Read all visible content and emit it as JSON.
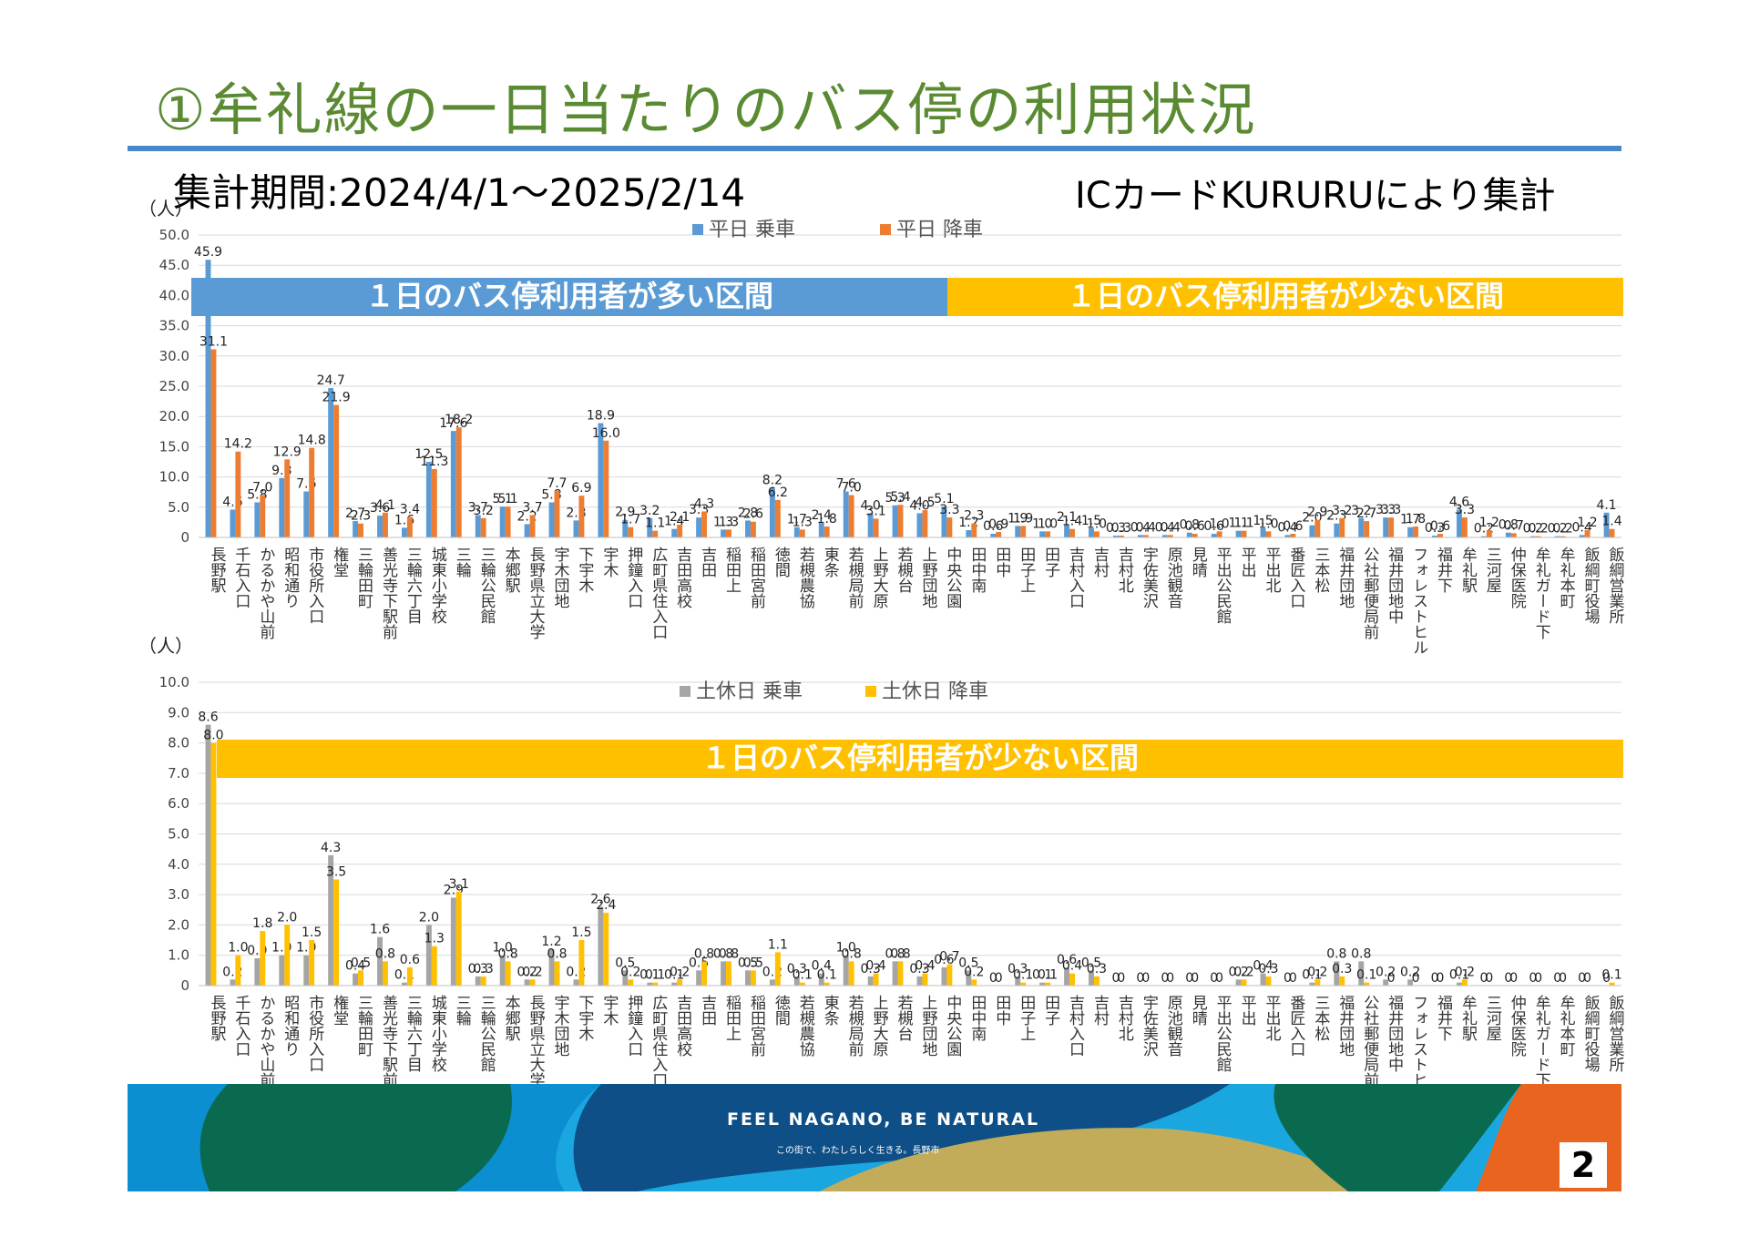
{
  "slide": {
    "title": "①牟礼線の一日当たりのバス停の利用状況",
    "period": "集計期間:2024/4/1～2025/2/14",
    "source": "ICカードKURURUにより集計",
    "brand": "FEEL NAGANO, BE NATURAL",
    "tagline": "この街で、わたしらしく生きる。長野市",
    "page_number": "2"
  },
  "chart_data": [
    {
      "type": "bar",
      "unit_label": "（人）",
      "ylim": [
        0,
        50
      ],
      "yticks": [
        "0",
        "5.0",
        "10.0",
        "15.0",
        "20.0",
        "25.0",
        "30.0",
        "35.0",
        "40.0",
        "45.0",
        "50.0"
      ],
      "grid": true,
      "legend_position": "top",
      "categories": [
        "長野駅",
        "千石入口",
        "かるかや山前",
        "昭和通り",
        "市役所入口",
        "権堂",
        "三輪田町",
        "善光寺下駅前",
        "三輪六丁目",
        "城東小学校",
        "三輪",
        "三輪公民館",
        "本郷駅",
        "長野県立大学",
        "宇木団地",
        "下宇木",
        "宇木",
        "押鐘入口",
        "広町県住入口",
        "吉田高校",
        "吉田",
        "稲田上",
        "稲田宮前",
        "徳間",
        "若槻農協",
        "東条",
        "若槻局前",
        "上野大原",
        "若槻台",
        "上野団地",
        "中央公園",
        "田中南",
        "田中",
        "田子上",
        "田子",
        "吉村入口",
        "吉村",
        "吉村北",
        "宇佐美沢",
        "原池観音",
        "見晴",
        "平出公民館",
        "平出",
        "平出北",
        "番匠入口",
        "三本松",
        "福井団地",
        "公社郵便局前",
        "福井団地中",
        "フォレストヒル",
        "福井下",
        "牟礼駅",
        "三河屋",
        "仲保医院",
        "牟礼ガード下",
        "牟礼本町",
        "飯綱町役場",
        "飯綱営業所"
      ],
      "series": [
        {
          "name": "平日 乗車",
          "color": "#5b9bd5",
          "values": [
            45.9,
            4.6,
            5.8,
            9.8,
            7.6,
            24.7,
            2.7,
            3.6,
            1.6,
            12.5,
            17.6,
            3.7,
            5.1,
            2.2,
            5.8,
            2.8,
            18.9,
            2.9,
            3.2,
            1.4,
            3.3,
            1.3,
            2.8,
            8.2,
            1.7,
            2.4,
            7.6,
            4.0,
            5.3,
            4.0,
            5.1,
            1.2,
            0.6,
            1.9,
            1.0,
            2.1,
            1.5,
            0.3,
            0.4,
            0.4,
            0.8,
            0.6,
            1.1,
            1.5,
            0.4,
            2.0,
            2.3,
            3.2,
            3.3,
            1.7,
            0.3,
            4.6,
            0.2,
            0.8,
            0.2,
            0.2,
            0.4,
            4.1
          ]
        },
        {
          "name": "平日 降車",
          "color": "#ed7d31",
          "values": [
            31.1,
            14.2,
            7.0,
            12.9,
            14.8,
            21.9,
            2.3,
            4.1,
            3.4,
            11.3,
            18.2,
            3.2,
            5.1,
            3.7,
            7.7,
            6.9,
            16.0,
            1.7,
            1.1,
            2.1,
            4.3,
            1.3,
            2.6,
            6.2,
            1.3,
            1.8,
            7.0,
            3.1,
            5.4,
            4.5,
            3.3,
            2.3,
            0.9,
            1.9,
            1.0,
            1.4,
            1.0,
            0.3,
            0.4,
            0.4,
            0.6,
            1.0,
            1.1,
            1.0,
            0.6,
            2.9,
            3.2,
            2.7,
            3.3,
            1.8,
            0.6,
            3.3,
            1.2,
            0.7,
            0.2,
            0.2,
            1.2,
            1.4
          ]
        }
      ],
      "bands": [
        {
          "label": "１日のバス停利用者が多い区間",
          "color": "#5b9bd5"
        },
        {
          "label": "１日のバス停利用者が少ない区間",
          "color": "#ffc000"
        }
      ]
    },
    {
      "type": "bar",
      "unit_label": "（人）",
      "ylim": [
        0,
        10
      ],
      "yticks": [
        "0",
        "1.0",
        "2.0",
        "3.0",
        "4.0",
        "5.0",
        "6.0",
        "7.0",
        "8.0",
        "9.0",
        "10.0"
      ],
      "grid": true,
      "legend_position": "top",
      "categories": [
        "長野駅",
        "千石入口",
        "かるかや山前",
        "昭和通り",
        "市役所入口",
        "権堂",
        "三輪田町",
        "善光寺下駅前",
        "三輪六丁目",
        "城東小学校",
        "三輪",
        "三輪公民館",
        "本郷駅",
        "長野県立大学",
        "宇木団地",
        "下宇木",
        "宇木",
        "押鐘入口",
        "広町県住入口",
        "吉田高校",
        "吉田",
        "稲田上",
        "稲田宮前",
        "徳間",
        "若槻農協",
        "東条",
        "若槻局前",
        "上野大原",
        "若槻台",
        "上野団地",
        "中央公園",
        "田中南",
        "田中",
        "田子上",
        "田子",
        "吉村入口",
        "吉村",
        "吉村北",
        "宇佐美沢",
        "原池観音",
        "見晴",
        "平出公民館",
        "平出",
        "平出北",
        "番匠入口",
        "三本松",
        "福井団地",
        "公社郵便局前",
        "福井団地中",
        "フォレストヒル",
        "福井下",
        "牟礼駅",
        "三河屋",
        "仲保医院",
        "牟礼ガード下",
        "牟礼本町",
        "飯綱町役場",
        "飯綱営業所"
      ],
      "series": [
        {
          "name": "土休日 乗車",
          "color": "#a5a5a5",
          "values": [
            8.6,
            0.2,
            0.9,
            1.0,
            1.0,
            4.3,
            0.4,
            1.6,
            0.1,
            2.0,
            2.9,
            0.3,
            1.0,
            0.2,
            1.2,
            0.2,
            2.6,
            0.5,
            0.1,
            0.1,
            0.5,
            0.8,
            0.5,
            0.2,
            0.3,
            0.4,
            1.0,
            0.3,
            0.8,
            0.3,
            0.6,
            0.5,
            0,
            0.3,
            0.1,
            0.6,
            0.5,
            0,
            0,
            0,
            0,
            0,
            0.2,
            0.4,
            0,
            0.1,
            0.8,
            0.8,
            0.2,
            0.2,
            0,
            0.1,
            0,
            0,
            0,
            0,
            0,
            0
          ]
        },
        {
          "name": "土休日 降車",
          "color": "#ffc000",
          "values": [
            8.0,
            1.0,
            1.8,
            2.0,
            1.5,
            3.5,
            0.5,
            0.8,
            0.6,
            1.3,
            3.1,
            0.3,
            0.8,
            0.2,
            0.8,
            1.5,
            2.4,
            0.2,
            0.1,
            0.2,
            0.8,
            0.8,
            0.5,
            1.1,
            0.1,
            0.1,
            0.8,
            0.4,
            0.8,
            0.4,
            0.7,
            0.2,
            0,
            0.1,
            0.1,
            0.4,
            0.3,
            0,
            0,
            0,
            0,
            0,
            0.2,
            0.3,
            0,
            0.2,
            0.3,
            0.1,
            0,
            0,
            0,
            0.2,
            0,
            0,
            0,
            0,
            0,
            0.1
          ]
        }
      ],
      "bands": [
        {
          "label": "１日のバス停利用者が少ない区間",
          "color": "#ffc000"
        }
      ]
    }
  ]
}
